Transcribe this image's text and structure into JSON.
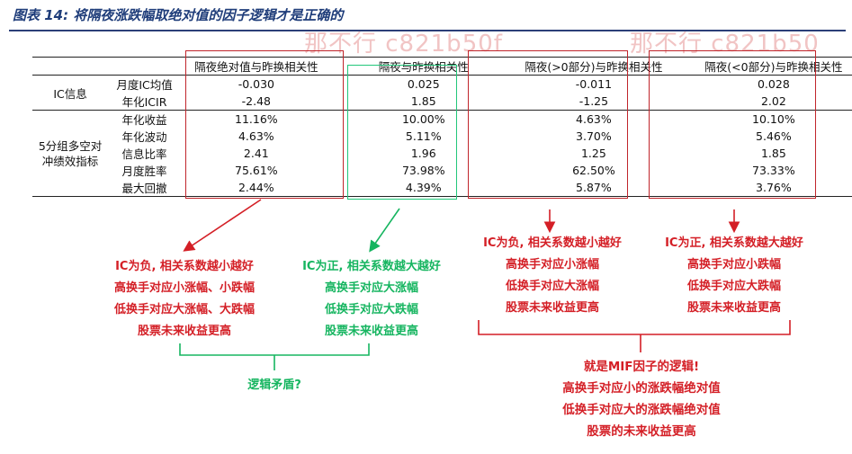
{
  "title": "图表 14: 将隔夜涨跌幅取绝对值的因子逻辑才是正确的",
  "watermark": [
    "那不行 c821b50f",
    "那不行 c821b50"
  ],
  "table": {
    "columns": [
      "隔夜绝对值与昨换相关性",
      "隔夜与昨换相关性",
      "隔夜(>0部分)与昨换相关性",
      "隔夜(<0部分)与昨换相关性"
    ],
    "groups": [
      {
        "label": "IC信息",
        "rows": [
          {
            "metric": "月度IC均值",
            "values": [
              "-0.030",
              "0.025",
              "-0.011",
              "0.028"
            ]
          },
          {
            "metric": "年化ICIR",
            "values": [
              "-2.48",
              "1.85",
              "-1.25",
              "2.02"
            ]
          }
        ]
      },
      {
        "label_line1": "5分组多空对",
        "label_line2": "冲绩效指标",
        "rows": [
          {
            "metric": "年化收益",
            "values": [
              "11.16%",
              "10.00%",
              "4.63%",
              "10.10%"
            ]
          },
          {
            "metric": "年化波动",
            "values": [
              "4.63%",
              "5.11%",
              "3.70%",
              "5.46%"
            ]
          },
          {
            "metric": "信息比率",
            "values": [
              "2.41",
              "1.96",
              "1.25",
              "1.85"
            ]
          },
          {
            "metric": "月度胜率",
            "values": [
              "75.61%",
              "73.98%",
              "62.50%",
              "73.33%"
            ]
          },
          {
            "metric": "最大回撤",
            "values": [
              "2.44%",
              "4.39%",
              "5.87%",
              "3.76%"
            ]
          }
        ]
      }
    ]
  },
  "annotations": {
    "col1": [
      "IC为负, 相关系数越小越好",
      "高换手对应小涨幅、小跌幅",
      "低换手对应大涨幅、大跌幅",
      "股票未来收益更高"
    ],
    "col2": [
      "IC为正, 相关系数越大越好",
      "高换手对应大涨幅",
      "低换手对应大跌幅",
      "股票未来收益更高"
    ],
    "col3": [
      "IC为负, 相关系数越小越好",
      "高换手对应小涨幅",
      "低换手对应大涨幅",
      "股票未来收益更高"
    ],
    "col4": [
      "IC为正, 相关系数越大越好",
      "高换手对应小跌幅",
      "低换手对应大跌幅",
      "股票未来收益更高"
    ],
    "contradiction": "逻辑矛盾?",
    "conclusion": [
      "就是MIF因子的逻辑!",
      "高换手对应小的涨跌幅绝对值",
      "低换手对应大的涨跌幅绝对值",
      "股票的未来收益更高"
    ]
  },
  "colors": {
    "red": "#d41f26",
    "green": "#16b560",
    "title": "#1f3d7a"
  }
}
